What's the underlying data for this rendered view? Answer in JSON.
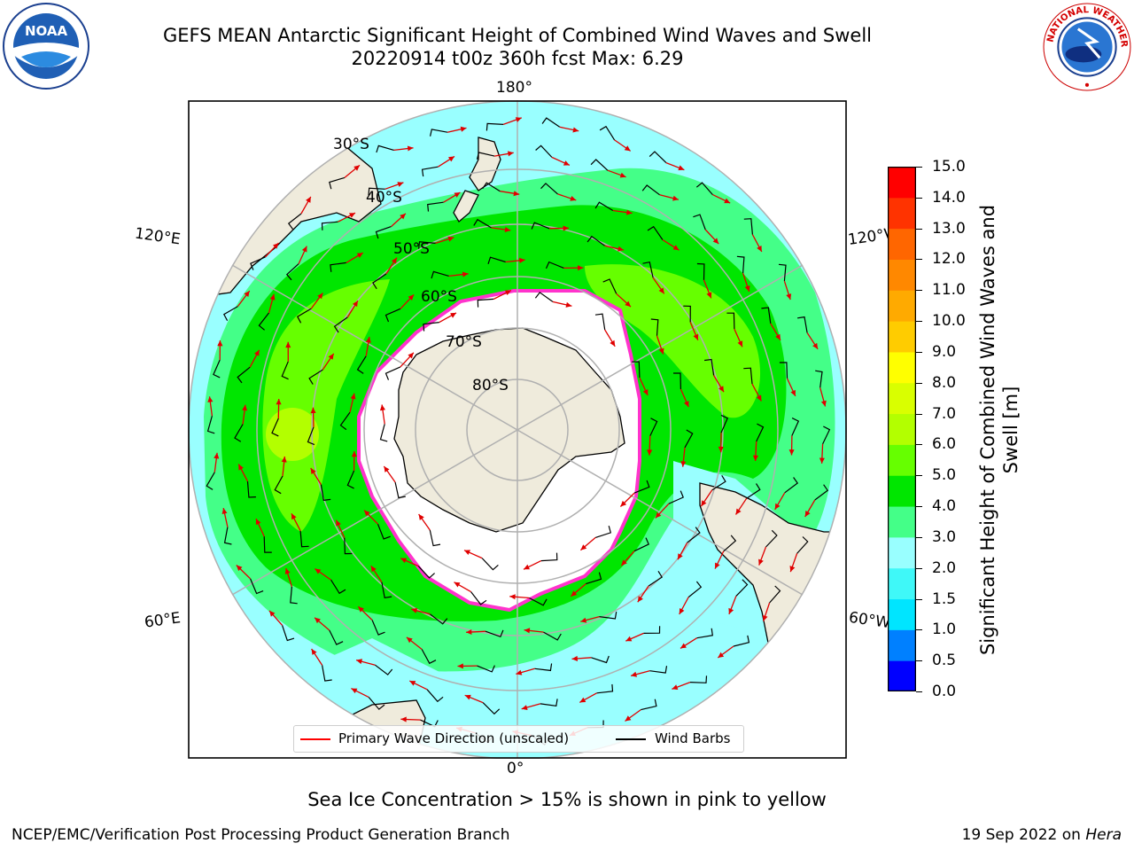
{
  "title": {
    "line1": "GEFS MEAN Antarctic Significant Height of Combined Wind Waves and Swell",
    "line2": "20220914 t00z 360h fcst   Max: 6.29"
  },
  "logos": {
    "left": "NOAA",
    "right": "NATIONAL WEATHER SERVICE"
  },
  "map": {
    "projection": "south-polar-stereographic",
    "longitude_labels": {
      "top": "180°",
      "bottom": "0°",
      "left_upper": "120°E",
      "left_lower": "60°E",
      "right_upper": "120°W",
      "right_lower": "60°W"
    },
    "latitude_labels": [
      "30°S",
      "40°S",
      "50°S",
      "60°S",
      "70°S",
      "80°S"
    ],
    "field": "Significant Height of Combined Wind Waves and Swell",
    "max_value": 6.29,
    "colors": {
      "land": "#efebdc",
      "sea_ice": "#ffffff",
      "ice_edge": "#ff33cc",
      "arrow": "#ff0000",
      "barb": "#000000"
    }
  },
  "colorbar": {
    "label": "Significant Height of Combined Wind Waves and Swell [m]",
    "ticks": [
      "15.0",
      "14.0",
      "13.0",
      "12.0",
      "11.0",
      "10.0",
      "9.0",
      "8.0",
      "7.0",
      "6.0",
      "5.0",
      "4.0",
      "3.0",
      "2.0",
      "1.5",
      "1.0",
      "0.5",
      "0.0"
    ],
    "colors_bottom_to_top": [
      "#0000ff",
      "#0080ff",
      "#00e5ff",
      "#3ff8f8",
      "#99ffff",
      "#44ff88",
      "#00e600",
      "#66ff00",
      "#b3ff00",
      "#d9ff00",
      "#ffff00",
      "#ffcc00",
      "#ffaa00",
      "#ff8800",
      "#ff6600",
      "#ff3300",
      "#ff0000"
    ]
  },
  "legend": {
    "primary": "Primary Wave Direction (unscaled)",
    "wind": "Wind Barbs"
  },
  "note": "Sea Ice Concentration > 15% is shown in pink to yellow",
  "footer": {
    "left": "NCEP/EMC/Verification Post Processing Product Generation Branch",
    "right_date": "19 Sep 2022 on",
    "right_host": "Hera"
  }
}
